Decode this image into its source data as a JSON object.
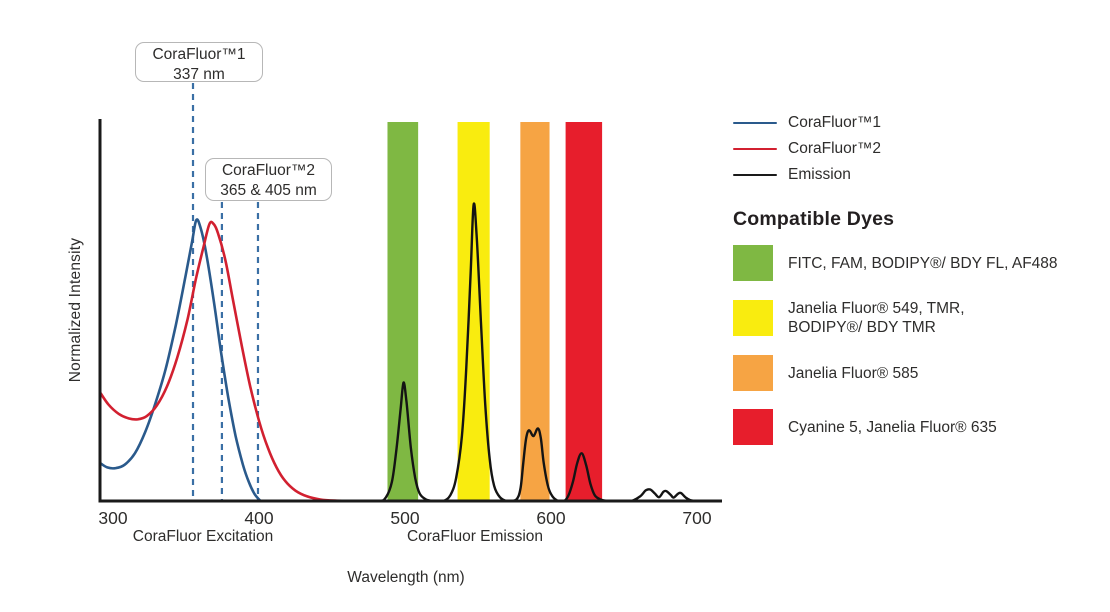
{
  "legend": {
    "series": [
      {
        "label": "CoraFluor™1",
        "color": "#2a5a8c"
      },
      {
        "label": "CoraFluor™2",
        "color": "#d22030"
      },
      {
        "label": "Emission",
        "color": "#1a1a1a"
      }
    ],
    "dyes_heading": "Compatible Dyes",
    "dyes": [
      {
        "color": "#7fb843",
        "lines": [
          "FITC, FAM, BODIPY®/ BDY FL, AF488"
        ]
      },
      {
        "color": "#f9ec0f",
        "lines": [
          "Janelia Fluor® 549, TMR,",
          "BODIPY®/ BDY TMR"
        ]
      },
      {
        "color": "#f6a444",
        "lines": [
          "Janelia Fluor® 585"
        ]
      },
      {
        "color": "#e71e2c",
        "lines": [
          "Cyanine 5, Janelia Fluor® 635"
        ]
      }
    ]
  },
  "chart_data": {
    "type": "line",
    "xlabel": "Wavelength (nm)",
    "ylabel": "Normalized Intensity",
    "x_ticks": [
      300,
      400,
      500,
      600,
      700
    ],
    "x_range": [
      291,
      716
    ],
    "ylim": [
      0,
      1
    ],
    "grid": false,
    "legend_position": "right",
    "axis_captions": {
      "excitation": "CoraFluor Excitation",
      "emission": "CoraFluor Emission"
    },
    "annotations": [
      {
        "lines": [
          "CoraFluor™1",
          "337 nm"
        ],
        "marker_nm": [
          354.8
        ]
      },
      {
        "lines": [
          "CoraFluor™2",
          "365 & 405 nm"
        ],
        "marker_nm": [
          374.6,
          399.3
        ]
      }
    ],
    "marker_color": "#3a6fa5",
    "bands": [
      {
        "name": "FITC, FAM, BODIPY®/ BDY FL, AF488",
        "nm": [
          488,
          509
        ],
        "color": "#7fb843"
      },
      {
        "name": "Janelia Fluor® 549, TMR, BODIPY®/ BDY TMR",
        "nm": [
          536,
          558
        ],
        "color": "#f9ec0f"
      },
      {
        "name": "Janelia Fluor® 585",
        "nm": [
          579,
          599
        ],
        "color": "#f6a444"
      },
      {
        "name": "Cyanine 5, Janelia Fluor® 635",
        "nm": [
          610,
          635
        ],
        "color": "#e71e2c"
      }
    ],
    "series": [
      {
        "name": "CoraFluor™1 excitation",
        "color": "#2a5a8c",
        "width": 2.6,
        "points": [
          [
            291,
            0.1
          ],
          [
            296,
            0.088
          ],
          [
            302,
            0.086
          ],
          [
            308,
            0.095
          ],
          [
            315,
            0.125
          ],
          [
            322,
            0.18
          ],
          [
            329,
            0.255
          ],
          [
            336,
            0.345
          ],
          [
            343,
            0.46
          ],
          [
            349,
            0.575
          ],
          [
            354,
            0.675
          ],
          [
            357,
            0.735
          ],
          [
            360,
            0.715
          ],
          [
            364,
            0.645
          ],
          [
            369,
            0.525
          ],
          [
            374,
            0.39
          ],
          [
            379,
            0.27
          ],
          [
            384,
            0.17
          ],
          [
            389,
            0.095
          ],
          [
            393,
            0.05
          ],
          [
            397,
            0.018
          ],
          [
            401,
            0
          ]
        ]
      },
      {
        "name": "CoraFluor™2 excitation",
        "color": "#d22030",
        "width": 2.6,
        "points": [
          [
            291,
            0.285
          ],
          [
            297,
            0.252
          ],
          [
            304,
            0.228
          ],
          [
            311,
            0.216
          ],
          [
            317,
            0.214
          ],
          [
            323,
            0.222
          ],
          [
            330,
            0.25
          ],
          [
            337,
            0.3
          ],
          [
            344,
            0.375
          ],
          [
            351,
            0.475
          ],
          [
            357,
            0.585
          ],
          [
            362,
            0.665
          ],
          [
            366,
            0.725
          ],
          [
            369,
            0.725
          ],
          [
            372,
            0.7
          ],
          [
            377,
            0.63
          ],
          [
            382,
            0.53
          ],
          [
            388,
            0.41
          ],
          [
            394,
            0.3
          ],
          [
            400,
            0.21
          ],
          [
            406,
            0.14
          ],
          [
            412,
            0.088
          ],
          [
            418,
            0.052
          ],
          [
            425,
            0.027
          ],
          [
            433,
            0.012
          ],
          [
            442,
            0.004
          ],
          [
            452,
            0.001
          ],
          [
            462,
            0
          ]
        ]
      },
      {
        "name": "Emission",
        "color": "#141414",
        "width": 2.4,
        "points": [
          [
            465,
            0
          ],
          [
            482,
            0
          ],
          [
            487,
            0.01
          ],
          [
            491,
            0.05
          ],
          [
            494,
            0.13
          ],
          [
            497,
            0.24
          ],
          [
            499,
            0.31
          ],
          [
            501,
            0.26
          ],
          [
            504,
            0.14
          ],
          [
            507,
            0.06
          ],
          [
            510,
            0.02
          ],
          [
            514,
            0.005
          ],
          [
            519,
            0
          ],
          [
            526,
            0
          ],
          [
            531,
            0.015
          ],
          [
            535,
            0.06
          ],
          [
            539,
            0.17
          ],
          [
            542,
            0.35
          ],
          [
            545,
            0.6
          ],
          [
            547,
            0.775
          ],
          [
            549,
            0.7
          ],
          [
            552,
            0.47
          ],
          [
            555,
            0.25
          ],
          [
            558,
            0.11
          ],
          [
            561,
            0.04
          ],
          [
            565,
            0.01
          ],
          [
            570,
            0
          ],
          [
            576,
            0.003
          ],
          [
            579,
            0.03
          ],
          [
            581,
            0.1
          ],
          [
            583,
            0.165
          ],
          [
            585,
            0.185
          ],
          [
            588,
            0.17
          ],
          [
            591,
            0.19
          ],
          [
            593,
            0.165
          ],
          [
            595,
            0.1
          ],
          [
            598,
            0.038
          ],
          [
            601,
            0.012
          ],
          [
            605,
            0
          ],
          [
            609,
            0
          ],
          [
            612,
            0.015
          ],
          [
            615,
            0.05
          ],
          [
            618,
            0.1
          ],
          [
            621,
            0.125
          ],
          [
            624,
            0.095
          ],
          [
            627,
            0.045
          ],
          [
            630,
            0.015
          ],
          [
            634,
            0.004
          ],
          [
            639,
            0
          ],
          [
            648,
            0
          ],
          [
            655,
            0
          ],
          [
            661,
            0.012
          ],
          [
            665,
            0.028
          ],
          [
            668,
            0.03
          ],
          [
            671,
            0.02
          ],
          [
            674,
            0.01
          ],
          [
            677,
            0.024
          ],
          [
            679,
            0.026
          ],
          [
            682,
            0.016
          ],
          [
            684,
            0.009
          ],
          [
            687,
            0.019
          ],
          [
            689,
            0.021
          ],
          [
            692,
            0.01
          ],
          [
            695,
            0.003
          ],
          [
            700,
            0
          ],
          [
            714,
            0
          ]
        ]
      }
    ]
  }
}
